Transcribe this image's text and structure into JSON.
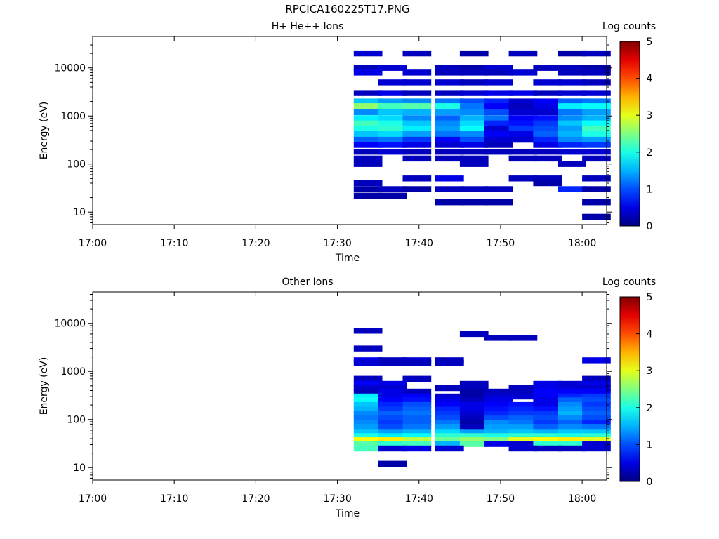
{
  "page": {
    "title": "RPCICA160225T17.PNG"
  },
  "colorbar": {
    "label": "Log counts",
    "min": 0,
    "max": 5,
    "ticks": [
      "0",
      "1",
      "2",
      "3",
      "4",
      "5"
    ],
    "colormap": "jet"
  },
  "chart_data": [
    {
      "type": "heatmap",
      "title": "H+ He++ Ions",
      "xlabel": "Time",
      "ylabel": "Energy (eV)",
      "yscale": "log",
      "ylim": [
        5.5,
        45000
      ],
      "xlim": [
        "17:00",
        "18:03"
      ],
      "x_ticks": [
        "17:00",
        "17:10",
        "17:20",
        "17:30",
        "17:40",
        "17:50",
        "18:00"
      ],
      "y_ticks": [
        "10",
        "100",
        "1000",
        "10000"
      ],
      "time_bins": [
        "17:32",
        "17:35",
        "17:38",
        "17:42",
        "17:45",
        "17:48",
        "17:51",
        "17:54",
        "17:57",
        "18:00"
      ],
      "energy_bins": [
        20000,
        10000,
        8000,
        5000,
        3000,
        2000,
        1600,
        1200,
        900,
        700,
        550,
        420,
        320,
        250,
        180,
        130,
        100,
        50,
        40,
        30,
        22,
        16,
        8
      ],
      "values": [
        [
          0.4,
          0,
          0.3,
          0,
          0.2,
          0,
          0.3,
          0,
          0.2,
          0.3
        ],
        [
          0.3,
          0.4,
          0,
          0.3,
          0.2,
          0.4,
          0,
          0.3,
          0.3,
          0.2
        ],
        [
          0.5,
          0,
          0.4,
          0.3,
          0.3,
          0.3,
          0.4,
          0,
          0.3,
          0.3
        ],
        [
          0,
          0.4,
          0.4,
          0.4,
          0.3,
          0.4,
          0,
          0.4,
          0.4,
          0.3
        ],
        [
          0.3,
          0.5,
          0.3,
          0.3,
          0.4,
          0.5,
          0.5,
          0.3,
          0.4,
          0.4
        ],
        [
          1.6,
          1.4,
          1.3,
          1.2,
          1.0,
          0.8,
          0.4,
          0.6,
          1.1,
          1.2
        ],
        [
          2.6,
          2.2,
          2.3,
          2.0,
          1.2,
          0.6,
          0.3,
          0.5,
          1.8,
          1.9
        ],
        [
          1.3,
          1.6,
          1.5,
          1.4,
          1.3,
          1.0,
          0.4,
          0.4,
          1.2,
          1.4
        ],
        [
          1.8,
          1.7,
          1.3,
          1.1,
          1.5,
          1.2,
          0.6,
          0.7,
          1.3,
          1.5
        ],
        [
          2.2,
          2.0,
          1.6,
          1.3,
          1.7,
          0.8,
          0.7,
          0.9,
          1.6,
          1.9
        ],
        [
          2.0,
          2.1,
          1.8,
          1.4,
          1.9,
          0.4,
          0.9,
          1.0,
          1.4,
          2.2
        ],
        [
          1.6,
          1.7,
          1.4,
          1.2,
          1.3,
          0.6,
          0.5,
          1.1,
          1.5,
          2.0
        ],
        [
          1.1,
          1.2,
          0.9,
          0.6,
          1.0,
          0.4,
          0.4,
          0.8,
          1.3,
          1.4
        ],
        [
          0.6,
          0.7,
          0.5,
          0.4,
          0.5,
          0.3,
          0,
          0.5,
          0.8,
          0.9
        ],
        [
          0.3,
          0.4,
          0.3,
          0.3,
          0.3,
          0.3,
          0.3,
          0.3,
          0.4,
          0.4
        ],
        [
          0.3,
          0,
          0.3,
          0.3,
          0.3,
          0,
          0.3,
          0.3,
          0,
          0.3
        ],
        [
          0.3,
          0,
          0,
          0,
          0.3,
          0,
          0,
          0,
          0.3,
          0
        ],
        [
          0,
          0,
          0.3,
          0.5,
          0,
          0,
          0.3,
          0.3,
          0,
          0.3
        ],
        [
          0.3,
          0,
          0,
          0,
          0,
          0,
          0,
          0.2,
          0,
          0
        ],
        [
          0.2,
          0.3,
          0.2,
          0.3,
          0.3,
          0.3,
          0,
          0,
          0.8,
          0.2
        ],
        [
          0.2,
          0.2,
          0,
          0,
          0,
          0,
          0,
          0,
          0,
          0
        ],
        [
          0,
          0,
          0,
          0.2,
          0.2,
          0.2,
          0,
          0,
          0,
          0.2
        ],
        [
          0,
          0,
          0,
          0,
          0,
          0,
          0,
          0,
          0,
          0.2
        ]
      ]
    },
    {
      "type": "heatmap",
      "title": "Other Ions",
      "xlabel": "Time",
      "ylabel": "Energy (eV)",
      "yscale": "log",
      "ylim": [
        5.5,
        45000
      ],
      "xlim": [
        "17:00",
        "18:03"
      ],
      "x_ticks": [
        "17:00",
        "17:10",
        "17:20",
        "17:30",
        "17:40",
        "17:50",
        "18:00"
      ],
      "y_ticks": [
        "10",
        "100",
        "1000",
        "10000"
      ],
      "time_bins": [
        "17:32",
        "17:35",
        "17:38",
        "17:42",
        "17:45",
        "17:48",
        "17:51",
        "17:54",
        "17:57",
        "18:00"
      ],
      "energy_bins": [
        7000,
        6000,
        5000,
        3000,
        1700,
        1500,
        700,
        550,
        450,
        380,
        300,
        250,
        200,
        160,
        130,
        105,
        85,
        70,
        55,
        45,
        37,
        31,
        25,
        12
      ],
      "values": [
        [
          0.3,
          0,
          0,
          0,
          0,
          0,
          0,
          0,
          0,
          0
        ],
        [
          0,
          0,
          0,
          0,
          0.3,
          0,
          0,
          0,
          0,
          0
        ],
        [
          0,
          0,
          0,
          0,
          0,
          0.3,
          0.3,
          0,
          0,
          0
        ],
        [
          0.3,
          0,
          0,
          0,
          0,
          0,
          0,
          0,
          0,
          0
        ],
        [
          0.5,
          0.3,
          0.4,
          0.3,
          0,
          0,
          0,
          0,
          0,
          0.5
        ],
        [
          0.4,
          0.3,
          0.3,
          0.3,
          0,
          0,
          0,
          0,
          0,
          0
        ],
        [
          0.3,
          0,
          0.3,
          0,
          0,
          0,
          0,
          0,
          0,
          0.3
        ],
        [
          0.6,
          0.5,
          0,
          0,
          0.3,
          0,
          0,
          0.5,
          0.4,
          0.5
        ],
        [
          0.4,
          0.4,
          0,
          0.3,
          0.3,
          0,
          0.3,
          0.5,
          0.4,
          0.4
        ],
        [
          0.3,
          0.5,
          0.3,
          0,
          0.2,
          0.3,
          0.3,
          0.6,
          0.6,
          0.6
        ],
        [
          1.8,
          0.5,
          0.6,
          0.4,
          0.2,
          0.4,
          0.4,
          0.6,
          0.8,
          0.9
        ],
        [
          1.9,
          0.6,
          0.7,
          0.5,
          0.3,
          0.5,
          0,
          0.5,
          1.1,
          1.0
        ],
        [
          1.6,
          0.8,
          1.0,
          0.6,
          0.5,
          0.6,
          0.7,
          0.5,
          1.3,
          0.9
        ],
        [
          1.5,
          0.9,
          1.1,
          0.8,
          0.5,
          0.7,
          0.8,
          0.7,
          1.4,
          1.0
        ],
        [
          1.3,
          1.1,
          1.2,
          0.9,
          0.4,
          0.8,
          0.9,
          0.9,
          1.5,
          1.1
        ],
        [
          1.2,
          1.0,
          1.1,
          1.0,
          0.3,
          1.0,
          1.1,
          1.0,
          1.3,
          1.0
        ],
        [
          1.3,
          0.9,
          1.1,
          1.2,
          0.2,
          1.3,
          1.2,
          0.9,
          1.1,
          0.8
        ],
        [
          1.4,
          1.0,
          1.2,
          1.4,
          0.3,
          1.4,
          1.4,
          1.1,
          1.3,
          1.2
        ],
        [
          1.6,
          1.4,
          1.5,
          1.7,
          1.4,
          1.5,
          1.6,
          1.5,
          1.6,
          1.6
        ],
        [
          2.0,
          1.8,
          1.9,
          2.1,
          2.1,
          2.0,
          2.1,
          2.1,
          2.0,
          2.1
        ],
        [
          3.1,
          3.2,
          2.8,
          2.4,
          2.6,
          2.5,
          3.0,
          3.1,
          3.2,
          3.0
        ],
        [
          2.3,
          2.1,
          2.2,
          1.5,
          2.3,
          0.5,
          0.4,
          2.1,
          2.1,
          0.4
        ],
        [
          2.2,
          0.4,
          0.5,
          0.4,
          0,
          0,
          0.4,
          0.3,
          0.3,
          0.4
        ],
        [
          0,
          0.2,
          0,
          0,
          0,
          0,
          0,
          0,
          0,
          0
        ]
      ]
    }
  ]
}
